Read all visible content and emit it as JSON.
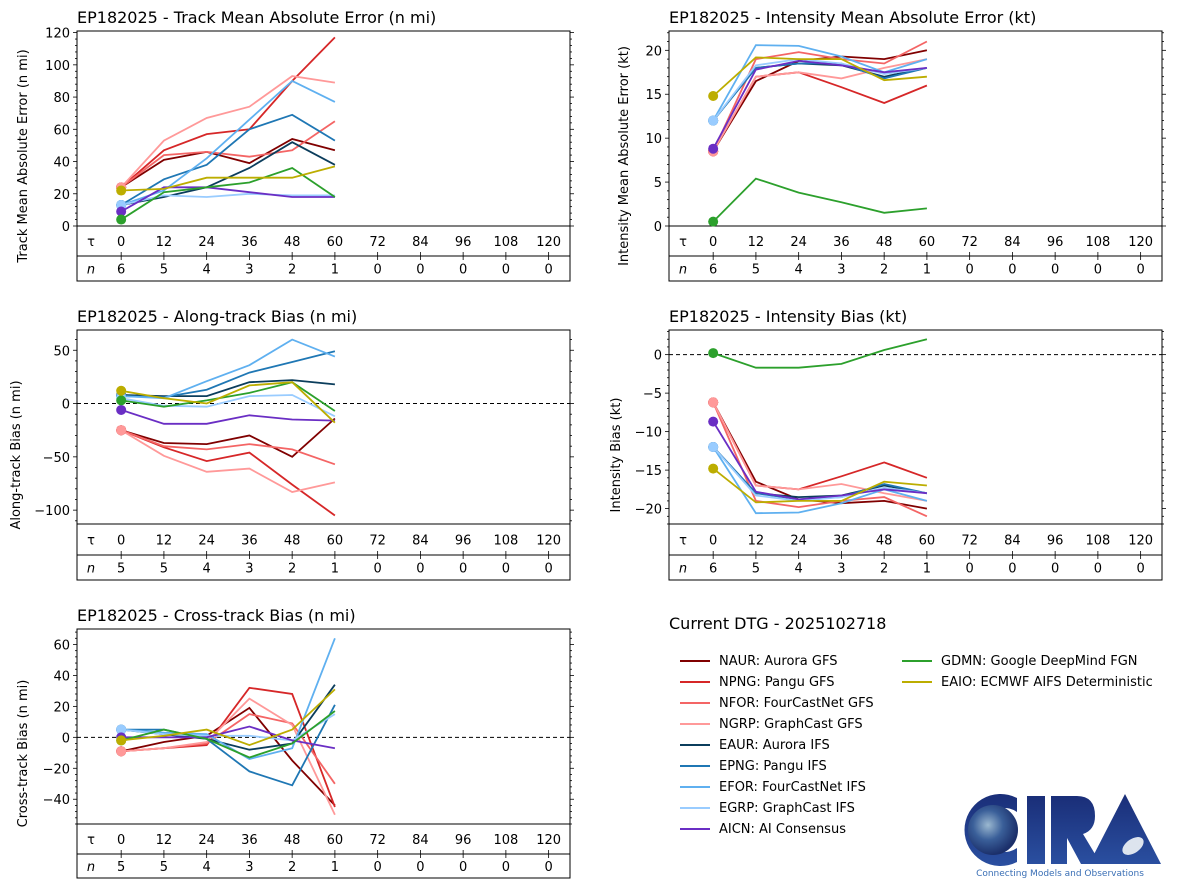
{
  "chart_data": [
    {
      "id": "track_mae",
      "type": "line",
      "title": "EP182025 - Track Mean Absolute Error (n mi)",
      "xlabel": "τ",
      "ylabel": "Track Mean Absolute Error (n mi)",
      "x": [
        0,
        12,
        24,
        36,
        48,
        60
      ],
      "x_ticks": [
        0,
        12,
        24,
        36,
        48,
        60,
        72,
        84,
        96,
        108,
        120
      ],
      "n_counts": [
        6,
        5,
        4,
        3,
        2,
        1,
        0,
        0,
        0,
        0,
        0
      ],
      "ylim": [
        0,
        121
      ],
      "y_ticks": [
        0,
        20,
        40,
        60,
        80,
        100,
        120
      ],
      "zero_line": false,
      "series": [
        {
          "name": "NAUR",
          "values": [
            24,
            41,
            46,
            39,
            54,
            47
          ]
        },
        {
          "name": "NPNG",
          "values": [
            24,
            47,
            57,
            60,
            90,
            117
          ]
        },
        {
          "name": "NFOR",
          "values": [
            24,
            44,
            46,
            43,
            47,
            65
          ]
        },
        {
          "name": "NGRP",
          "values": [
            24,
            53,
            67,
            74,
            93,
            89
          ]
        },
        {
          "name": "EAUR",
          "values": [
            13,
            18,
            24,
            36,
            52,
            38
          ]
        },
        {
          "name": "EPNG",
          "values": [
            13,
            29,
            38,
            60,
            69,
            53
          ]
        },
        {
          "name": "EFOR",
          "values": [
            13,
            22,
            42,
            66,
            90,
            77
          ]
        },
        {
          "name": "EGRP",
          "values": [
            13,
            19,
            18,
            20,
            19,
            19
          ]
        },
        {
          "name": "AICN",
          "values": [
            9,
            24,
            24,
            21,
            18,
            18
          ]
        },
        {
          "name": "GDMN",
          "values": [
            4,
            21,
            24,
            27,
            36,
            18
          ]
        },
        {
          "name": "EAIO",
          "values": [
            22,
            23,
            30,
            30,
            30,
            37
          ]
        }
      ]
    },
    {
      "id": "intensity_mae",
      "type": "line",
      "title": "EP182025 - Intensity Mean Absolute Error (kt)",
      "xlabel": "τ",
      "ylabel": "Intensity Mean Absolute Error (kt)",
      "x": [
        0,
        12,
        24,
        36,
        48,
        60
      ],
      "x_ticks": [
        0,
        12,
        24,
        36,
        48,
        60,
        72,
        84,
        96,
        108,
        120
      ],
      "n_counts": [
        6,
        5,
        4,
        3,
        2,
        1,
        0,
        0,
        0,
        0,
        0
      ],
      "ylim": [
        0,
        22.2
      ],
      "y_ticks": [
        0,
        5,
        10,
        15,
        20
      ],
      "zero_line": false,
      "series": [
        {
          "name": "NAUR",
          "values": [
            8.5,
            16.5,
            18.8,
            19.3,
            19.0,
            20.0
          ]
        },
        {
          "name": "NPNG",
          "values": [
            8.5,
            17.0,
            17.5,
            15.8,
            14.0,
            16.0
          ]
        },
        {
          "name": "NFOR",
          "values": [
            8.5,
            19.0,
            19.8,
            19.0,
            18.5,
            21.0
          ]
        },
        {
          "name": "NGRP",
          "values": [
            8.5,
            17.0,
            17.5,
            16.8,
            18.0,
            19.0
          ]
        },
        {
          "name": "EAUR",
          "values": [
            12.0,
            18.0,
            18.5,
            18.3,
            17.0,
            18.0
          ]
        },
        {
          "name": "EPNG",
          "values": [
            12.0,
            18.0,
            18.5,
            18.5,
            16.8,
            18.0
          ]
        },
        {
          "name": "EFOR",
          "values": [
            12.0,
            20.6,
            20.5,
            19.3,
            17.5,
            19.0
          ]
        },
        {
          "name": "EGRP",
          "values": [
            12.0,
            18.3,
            19.0,
            18.5,
            17.3,
            18.0
          ]
        },
        {
          "name": "AICN",
          "values": [
            8.8,
            17.8,
            18.8,
            18.3,
            17.5,
            18.0
          ]
        },
        {
          "name": "GDMN",
          "values": [
            0.5,
            5.4,
            3.8,
            2.7,
            1.5,
            2.0
          ]
        },
        {
          "name": "EAIO",
          "values": [
            14.8,
            19.2,
            19.0,
            19.0,
            16.6,
            17.0
          ]
        }
      ]
    },
    {
      "id": "along_track_bias",
      "type": "line",
      "title": "EP182025 - Along-track Bias (n mi)",
      "xlabel": "τ",
      "ylabel": "Along-track Bias (n mi)",
      "x": [
        0,
        12,
        24,
        36,
        48,
        60
      ],
      "x_ticks": [
        0,
        12,
        24,
        36,
        48,
        60,
        72,
        84,
        96,
        108,
        120
      ],
      "n_counts": [
        5,
        5,
        4,
        3,
        2,
        1,
        0,
        0,
        0,
        0,
        0
      ],
      "ylim": [
        -113,
        69
      ],
      "y_ticks": [
        -100,
        -50,
        0,
        50
      ],
      "zero_line": true,
      "series": [
        {
          "name": "NAUR",
          "values": [
            -25,
            -37,
            -38,
            -30,
            -50,
            -14
          ]
        },
        {
          "name": "NPNG",
          "values": [
            -25,
            -41,
            -54,
            -46,
            -76,
            -105
          ]
        },
        {
          "name": "NFOR",
          "values": [
            -25,
            -40,
            -43,
            -38,
            -43,
            -57
          ]
        },
        {
          "name": "NGRP",
          "values": [
            -25,
            -49,
            -64,
            -61,
            -83,
            -74
          ]
        },
        {
          "name": "EAUR",
          "values": [
            8,
            7,
            7,
            20,
            22,
            18
          ]
        },
        {
          "name": "EPNG",
          "values": [
            7,
            6,
            13,
            29,
            39,
            49
          ]
        },
        {
          "name": "EFOR",
          "values": [
            7,
            5,
            21,
            36,
            60,
            44
          ]
        },
        {
          "name": "EGRP",
          "values": [
            5,
            -2,
            -3,
            7,
            8,
            -12
          ]
        },
        {
          "name": "AICN",
          "values": [
            -6,
            -19,
            -19,
            -11,
            -15,
            -16
          ]
        },
        {
          "name": "GDMN",
          "values": [
            3,
            -3,
            3,
            10,
            20,
            -7
          ]
        },
        {
          "name": "EAIO",
          "values": [
            12,
            5,
            0,
            17,
            20,
            -18
          ]
        }
      ]
    },
    {
      "id": "intensity_bias",
      "type": "line",
      "title": "EP182025 - Intensity Bias (kt)",
      "xlabel": "τ",
      "ylabel": "Intensity Bias (kt)",
      "x": [
        0,
        12,
        24,
        36,
        48,
        60
      ],
      "x_ticks": [
        0,
        12,
        24,
        36,
        48,
        60,
        72,
        84,
        96,
        108,
        120
      ],
      "n_counts": [
        6,
        5,
        4,
        3,
        2,
        1,
        0,
        0,
        0,
        0,
        0
      ],
      "ylim": [
        -22,
        3.2
      ],
      "y_ticks": [
        -20,
        -15,
        -10,
        -5,
        0
      ],
      "zero_line": true,
      "series": [
        {
          "name": "NAUR",
          "values": [
            -6.2,
            -16.5,
            -18.8,
            -19.3,
            -19.0,
            -20.0
          ]
        },
        {
          "name": "NPNG",
          "values": [
            -6.2,
            -17.0,
            -17.5,
            -15.8,
            -14.0,
            -16.0
          ]
        },
        {
          "name": "NFOR",
          "values": [
            -6.2,
            -19.0,
            -19.8,
            -19.0,
            -18.5,
            -21.0
          ]
        },
        {
          "name": "NGRP",
          "values": [
            -6.2,
            -17.0,
            -17.5,
            -16.8,
            -18.0,
            -19.0
          ]
        },
        {
          "name": "EAUR",
          "values": [
            -12.0,
            -18.0,
            -18.5,
            -18.3,
            -17.0,
            -18.0
          ]
        },
        {
          "name": "EPNG",
          "values": [
            -12.0,
            -18.0,
            -18.8,
            -18.5,
            -16.8,
            -18.0
          ]
        },
        {
          "name": "EFOR",
          "values": [
            -12.0,
            -20.6,
            -20.5,
            -19.3,
            -17.5,
            -19.0
          ]
        },
        {
          "name": "EGRP",
          "values": [
            -12.0,
            -18.3,
            -19.0,
            -18.5,
            -17.3,
            -18.0
          ]
        },
        {
          "name": "AICN",
          "values": [
            -8.7,
            -17.8,
            -18.8,
            -18.3,
            -17.5,
            -18.0
          ]
        },
        {
          "name": "GDMN",
          "values": [
            0.2,
            -1.7,
            -1.7,
            -1.2,
            0.6,
            2.0
          ]
        },
        {
          "name": "EAIO",
          "values": [
            -14.8,
            -19.2,
            -19.0,
            -19.0,
            -16.5,
            -17.0
          ]
        }
      ]
    },
    {
      "id": "cross_track_bias",
      "type": "line",
      "title": "EP182025 - Cross-track Bias (n mi)",
      "xlabel": "τ",
      "ylabel": "Cross-track Bias (n mi)",
      "x": [
        0,
        12,
        24,
        36,
        48,
        60
      ],
      "x_ticks": [
        0,
        12,
        24,
        36,
        48,
        60,
        72,
        84,
        96,
        108,
        120
      ],
      "n_counts": [
        5,
        5,
        4,
        3,
        2,
        1,
        0,
        0,
        0,
        0,
        0
      ],
      "ylim": [
        -56,
        70
      ],
      "y_ticks": [
        -40,
        -20,
        0,
        20,
        40,
        60
      ],
      "zero_line": true,
      "series": [
        {
          "name": "NAUR",
          "values": [
            -9,
            -3,
            1,
            19,
            -15,
            -44
          ]
        },
        {
          "name": "NPNG",
          "values": [
            -9,
            -7,
            -5,
            32,
            28,
            -45
          ]
        },
        {
          "name": "NFOR",
          "values": [
            -9,
            -7,
            -4,
            15,
            9,
            -30
          ]
        },
        {
          "name": "NGRP",
          "values": [
            -9,
            -7,
            -3,
            25,
            8,
            -50
          ]
        },
        {
          "name": "EAUR",
          "values": [
            5,
            2,
            -1,
            -8,
            -4,
            34
          ]
        },
        {
          "name": "EPNG",
          "values": [
            5,
            5,
            -1,
            -22,
            -31,
            21
          ]
        },
        {
          "name": "EFOR",
          "values": [
            5,
            3,
            2,
            -14,
            -7,
            64
          ]
        },
        {
          "name": "EGRP",
          "values": [
            5,
            2,
            1,
            1,
            -2,
            15
          ]
        },
        {
          "name": "AICN",
          "values": [
            0,
            0,
            0,
            7,
            -2,
            -7
          ]
        },
        {
          "name": "GDMN",
          "values": [
            -2,
            5,
            -1,
            -13,
            -4,
            17
          ]
        },
        {
          "name": "EAIO",
          "values": [
            -2,
            1,
            5,
            -5,
            5,
            31
          ]
        }
      ]
    }
  ],
  "row_labels": {
    "tau": "τ",
    "n": "n"
  },
  "legend": {
    "title": "Current DTG - 2025102718",
    "items": [
      {
        "code": "NAUR",
        "label": "NAUR: Aurora GFS",
        "color": "#800000"
      },
      {
        "code": "NPNG",
        "label": "NPNG: Pangu GFS",
        "color": "#d62728"
      },
      {
        "code": "NFOR",
        "label": "NFOR: FourCastNet GFS",
        "color": "#f46565"
      },
      {
        "code": "NGRP",
        "label": "NGRP: GraphCast GFS",
        "color": "#ff9999"
      },
      {
        "code": "EAUR",
        "label": "EAUR: Aurora IFS",
        "color": "#0b3d5c"
      },
      {
        "code": "EPNG",
        "label": "EPNG: Pangu IFS",
        "color": "#1f77b4"
      },
      {
        "code": "EFOR",
        "label": "EFOR: FourCastNet IFS",
        "color": "#5fb0f0"
      },
      {
        "code": "EGRP",
        "label": "EGRP: GraphCast IFS",
        "color": "#99ccff"
      },
      {
        "code": "AICN",
        "label": "AICN: AI Consensus",
        "color": "#6a2ec4"
      },
      {
        "code": "GDMN",
        "label": "GDMN: Google DeepMind FGN",
        "color": "#2ca02c"
      },
      {
        "code": "EAIO",
        "label": "EAIO: ECMWF AIFS Deterministic",
        "color": "#bcad00"
      }
    ]
  },
  "logo": {
    "text": "CIRA",
    "tagline": "Connecting Models and Observations"
  }
}
